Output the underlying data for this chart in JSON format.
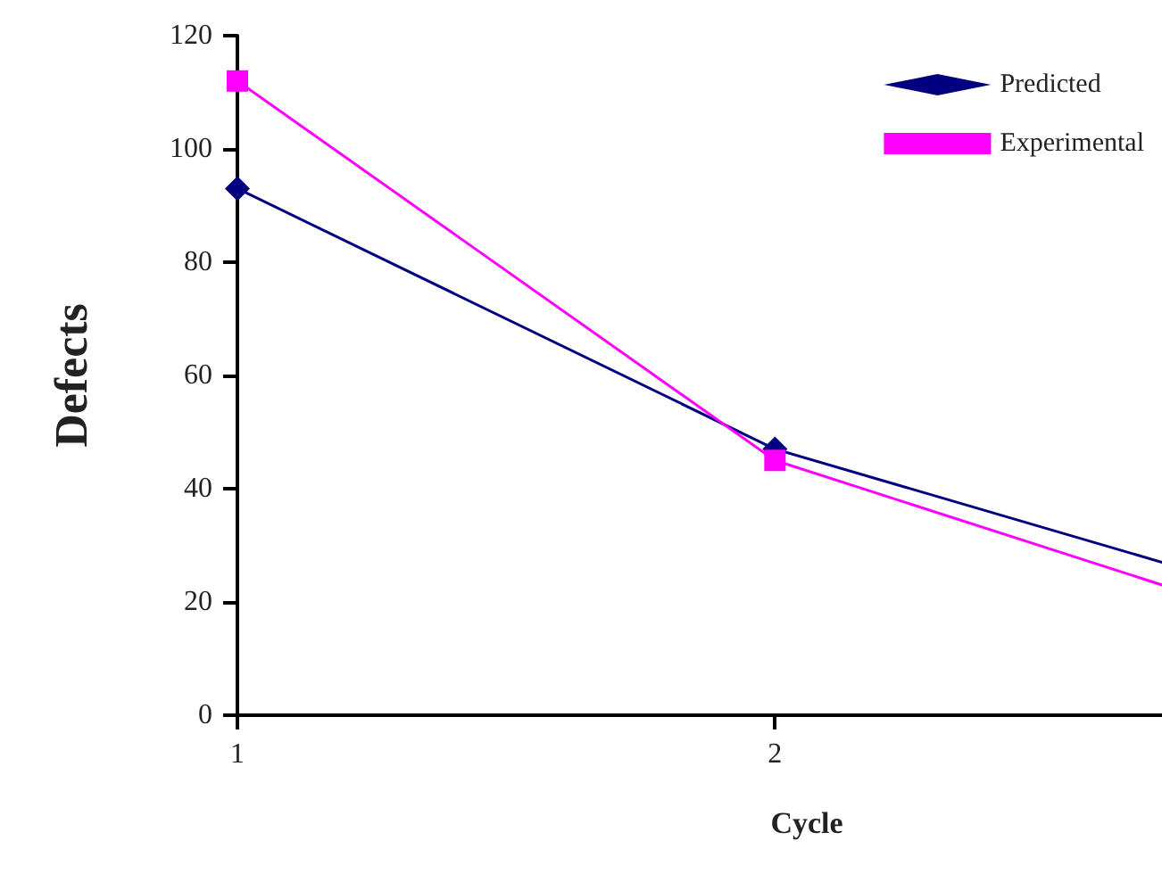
{
  "chart_data": {
    "type": "line",
    "xlabel": "Cycle",
    "ylabel": "Defects",
    "x": [
      1,
      2,
      2.72
    ],
    "xlim": [
      1,
      2.72
    ],
    "xticks": [
      1,
      2
    ],
    "ylim": [
      0,
      120
    ],
    "yticks": [
      0,
      20,
      40,
      60,
      80,
      100,
      120
    ],
    "series": [
      {
        "name": "Predicted",
        "color": "#000080",
        "marker": "diamond",
        "values": [
          93,
          47,
          27
        ]
      },
      {
        "name": "Experimental",
        "color": "#ff00ff",
        "marker": "square",
        "values": [
          112,
          45,
          23
        ]
      }
    ],
    "grid": false,
    "legend": "top right",
    "line_style": "solid"
  }
}
